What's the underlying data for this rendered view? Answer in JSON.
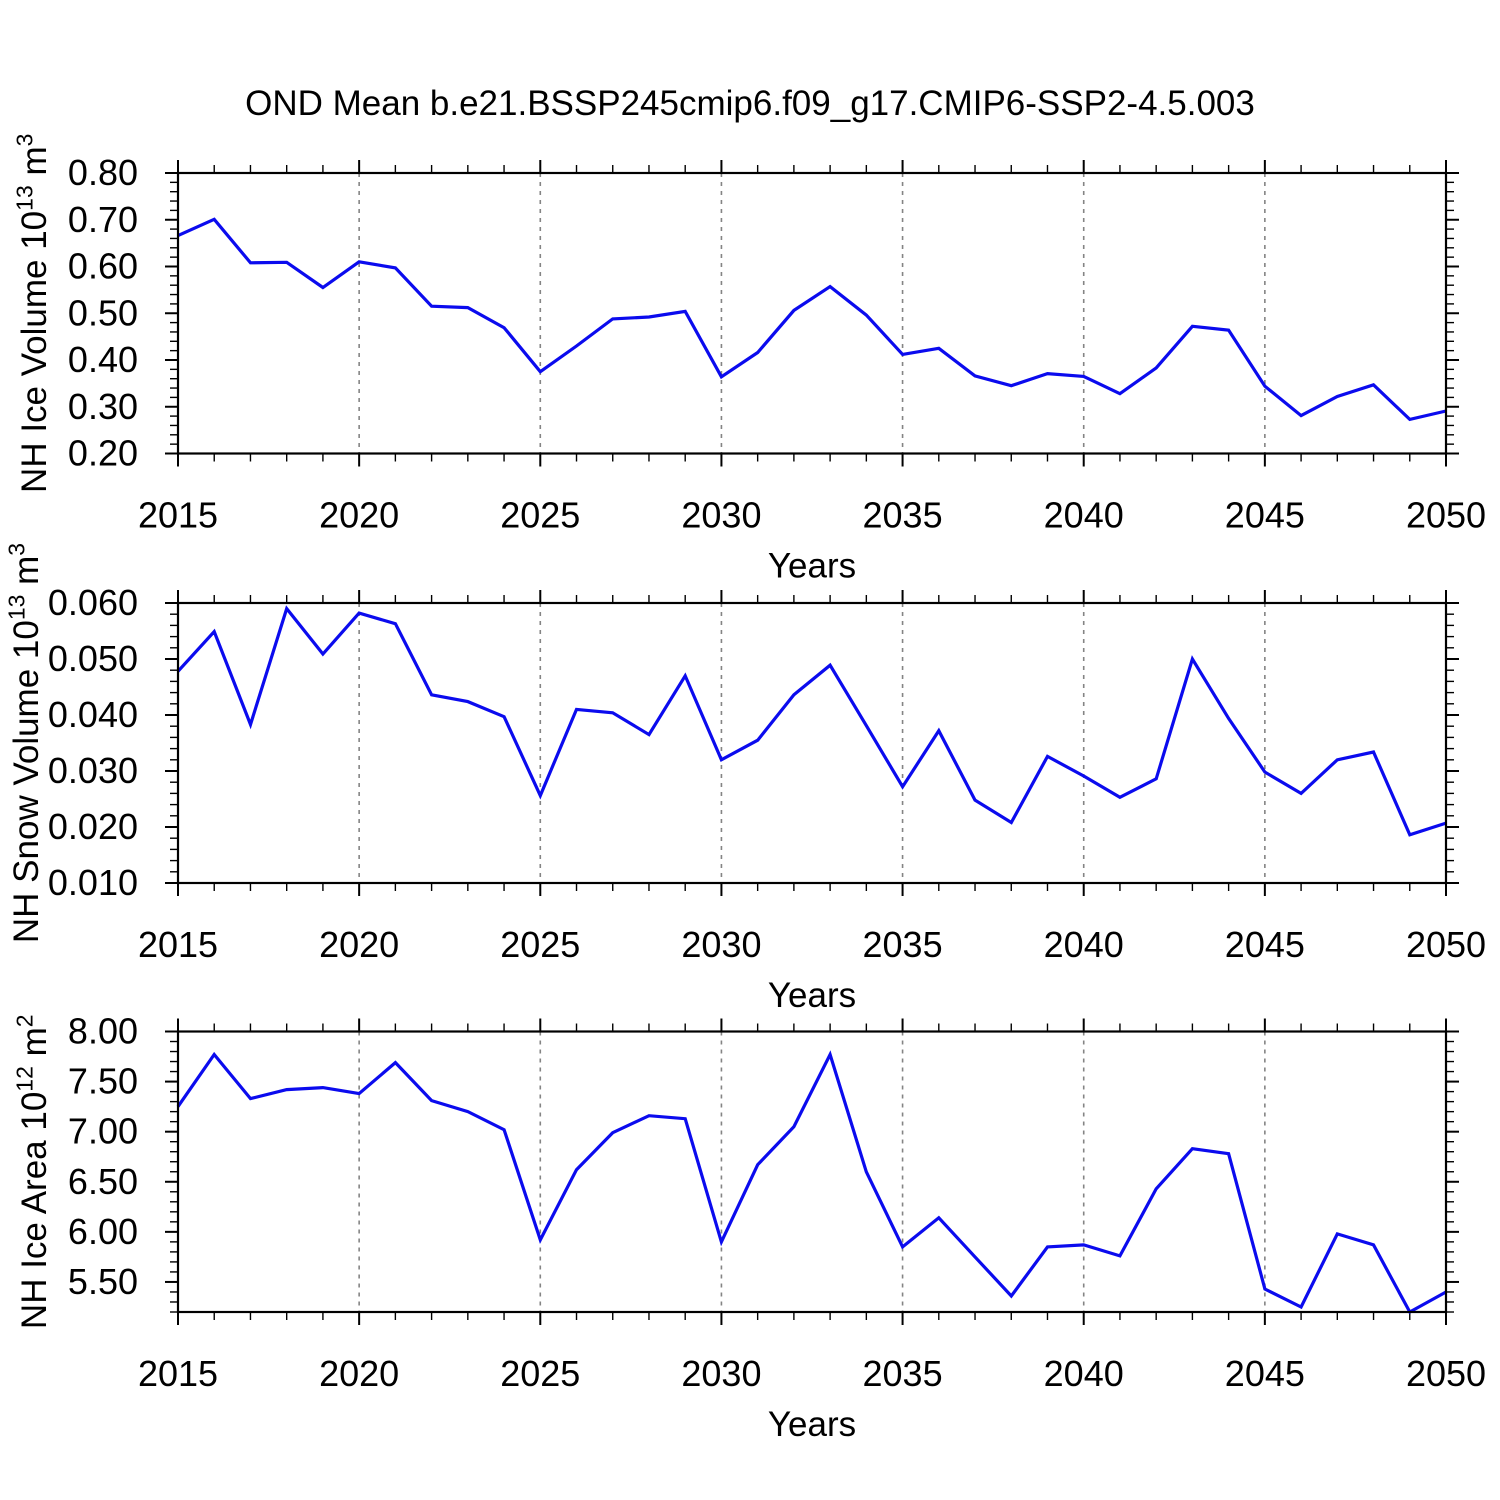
{
  "title": "OND Mean b.e21.BSSP245cmip6.f09_g17.CMIP6-SSP2-4.5.003",
  "colors": {
    "line": "#0b0bee",
    "grid": "#848484",
    "axis": "#000000",
    "background": "#ffffff"
  },
  "chart_data": {
    "type": "line",
    "title": "OND Mean b.e21.BSSP245cmip6.f09_g17.CMIP6-SSP2-4.5.003",
    "x": [
      2015,
      2016,
      2017,
      2018,
      2019,
      2020,
      2021,
      2022,
      2023,
      2024,
      2025,
      2026,
      2027,
      2028,
      2029,
      2030,
      2031,
      2032,
      2033,
      2034,
      2035,
      2036,
      2037,
      2038,
      2039,
      2040,
      2041,
      2042,
      2043,
      2044,
      2045,
      2046,
      2047,
      2048,
      2049,
      2050
    ],
    "xlim": [
      2015,
      2050
    ],
    "xticks_labeled": [
      2015,
      2020,
      2025,
      2030,
      2035,
      2040,
      2045,
      2050
    ],
    "xtick_minor_step": 1,
    "grid_years": [
      2020,
      2025,
      2030,
      2035,
      2040,
      2045
    ],
    "grid_on": "vertical-dashed-only",
    "legend": "none",
    "panels": [
      {
        "ylabel": "NH Ice Volume 10^13^ m^3^",
        "xlabel": "Years",
        "ylim": [
          0.2,
          0.8
        ],
        "ytick_step": 0.1,
        "ytick_minor_step": 0.02,
        "ytick_decimals": 2,
        "values": [
          0.666,
          0.701,
          0.608,
          0.609,
          0.555,
          0.61,
          0.597,
          0.515,
          0.512,
          0.469,
          0.375,
          0.43,
          0.488,
          0.492,
          0.504,
          0.364,
          0.416,
          0.506,
          0.557,
          0.496,
          0.412,
          0.425,
          0.366,
          0.345,
          0.371,
          0.365,
          0.328,
          0.383,
          0.472,
          0.464,
          0.344,
          0.281,
          0.322,
          0.347,
          0.273,
          0.291
        ]
      },
      {
        "ylabel": "NH Snow Volume 10^13^ m^3^",
        "xlabel": "Years",
        "ylim": [
          0.01,
          0.06
        ],
        "ytick_step": 0.01,
        "ytick_minor_step": 0.002,
        "ytick_decimals": 3,
        "values": [
          0.0478,
          0.0549,
          0.0383,
          0.059,
          0.0509,
          0.0582,
          0.0563,
          0.0436,
          0.0424,
          0.0397,
          0.0256,
          0.041,
          0.0404,
          0.0365,
          0.047,
          0.032,
          0.0355,
          0.0436,
          0.0489,
          0.0381,
          0.0272,
          0.0372,
          0.0248,
          0.0208,
          0.0326,
          0.0291,
          0.0253,
          0.0286,
          0.05,
          0.0394,
          0.0298,
          0.026,
          0.032,
          0.0334,
          0.0186,
          0.0207
        ]
      },
      {
        "ylabel": "NH Ice Area 10^12^ m^2^",
        "xlabel": "Years",
        "ylim": [
          5.2,
          8.0
        ],
        "ytick_step": 0.5,
        "ytick_minor_step": 0.1,
        "ytick_decimals": 2,
        "values": [
          7.25,
          7.77,
          7.33,
          7.42,
          7.44,
          7.38,
          7.69,
          7.31,
          7.2,
          7.02,
          5.92,
          6.62,
          6.99,
          7.16,
          7.13,
          5.9,
          6.67,
          7.05,
          7.77,
          6.6,
          5.85,
          6.14,
          5.75,
          5.36,
          5.85,
          5.87,
          5.76,
          6.43,
          6.83,
          6.78,
          5.43,
          5.25,
          5.98,
          5.87,
          5.2,
          5.4
        ]
      }
    ]
  }
}
